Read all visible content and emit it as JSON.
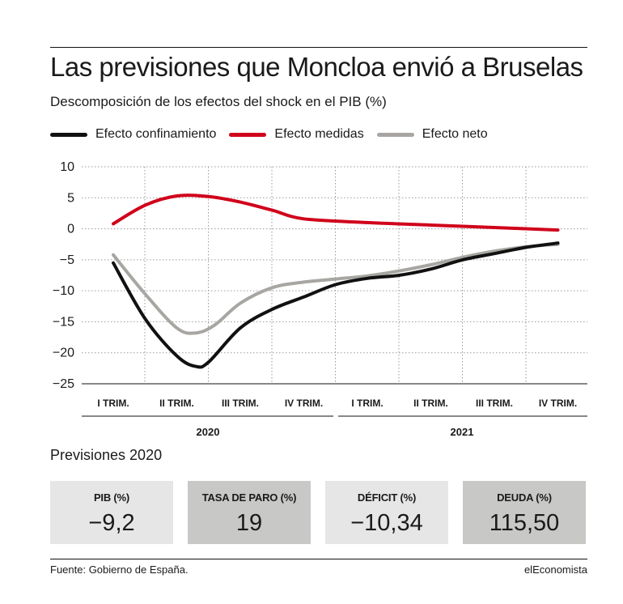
{
  "header": {
    "title": "Las previsiones que Moncloa envió a Bruselas",
    "subtitle": "Descomposición de los efectos del shock en el PIB (%)"
  },
  "colors": {
    "confinamiento": "#111111",
    "medidas": "#d0021b",
    "neto": "#a8a6a2",
    "box_light": "#e6e6e6",
    "box_dark": "#c8c8c6"
  },
  "chart_data": {
    "type": "line",
    "x_categories": [
      "I TRIM.",
      "II TRIM.",
      "III TRIM.",
      "IV TRIM.",
      "I TRIM.",
      "II TRIM.",
      "III TRIM.",
      "IV TRIM."
    ],
    "year_groups": [
      {
        "label": "2020",
        "quarters": [
          "I TRIM.",
          "II TRIM.",
          "III TRIM.",
          "IV TRIM."
        ]
      },
      {
        "label": "2021",
        "quarters": [
          "I TRIM.",
          "II TRIM.",
          "III TRIM.",
          "IV TRIM."
        ]
      }
    ],
    "ylim": [
      -25,
      10
    ],
    "yticks": [
      10,
      5,
      0,
      -5,
      -10,
      -15,
      -20,
      -25
    ],
    "ytick_labels": [
      "10",
      "5",
      "0",
      "−5",
      "−10",
      "−15",
      "−20",
      "−25"
    ],
    "grid": true,
    "legend_position": "top",
    "series": [
      {
        "name": "Efecto confinamiento",
        "key": "confinamiento",
        "x": [
          1,
          1.5,
          2,
          2.3,
          2.5,
          3,
          3.5,
          4,
          4.5,
          5,
          5.5,
          6,
          6.5,
          7,
          7.5,
          8
        ],
        "values": [
          -5.5,
          -14.5,
          -20.5,
          -22.2,
          -21.5,
          -16,
          -13,
          -11,
          -9,
          -8,
          -7.5,
          -6.5,
          -5,
          -4,
          -3,
          -2.3
        ]
      },
      {
        "name": "Efecto medidas",
        "key": "medidas",
        "x": [
          1,
          1.5,
          2,
          2.5,
          3,
          3.5,
          4,
          5,
          6,
          7,
          8
        ],
        "values": [
          0.8,
          3.8,
          5.3,
          5.2,
          4.3,
          3.0,
          1.6,
          1.0,
          0.6,
          0.2,
          -0.2
        ]
      },
      {
        "name": "Efecto neto",
        "key": "neto",
        "x": [
          1,
          1.5,
          2,
          2.3,
          2.6,
          3,
          3.5,
          4,
          4.5,
          5,
          5.5,
          6,
          6.5,
          7,
          7.5,
          8
        ],
        "values": [
          -4.2,
          -10.5,
          -16,
          -16.8,
          -15.5,
          -12,
          -9.5,
          -8.6,
          -8.1,
          -7.6,
          -6.8,
          -5.8,
          -4.6,
          -3.6,
          -2.9,
          -2.5
        ]
      }
    ]
  },
  "forecast": {
    "title": "Previsiones 2020",
    "boxes": [
      {
        "label": "PIB (%)",
        "value": "−9,2",
        "tone": "light"
      },
      {
        "label": "TASA DE PARO (%)",
        "value": "19",
        "tone": "dark"
      },
      {
        "label": "DÉFICIT (%)",
        "value": "−10,34",
        "tone": "light"
      },
      {
        "label": "DEUDA (%)",
        "value": "115,50",
        "tone": "dark"
      }
    ]
  },
  "footer": {
    "source": "Fuente: Gobierno de España.",
    "brand": "elEconomista"
  }
}
